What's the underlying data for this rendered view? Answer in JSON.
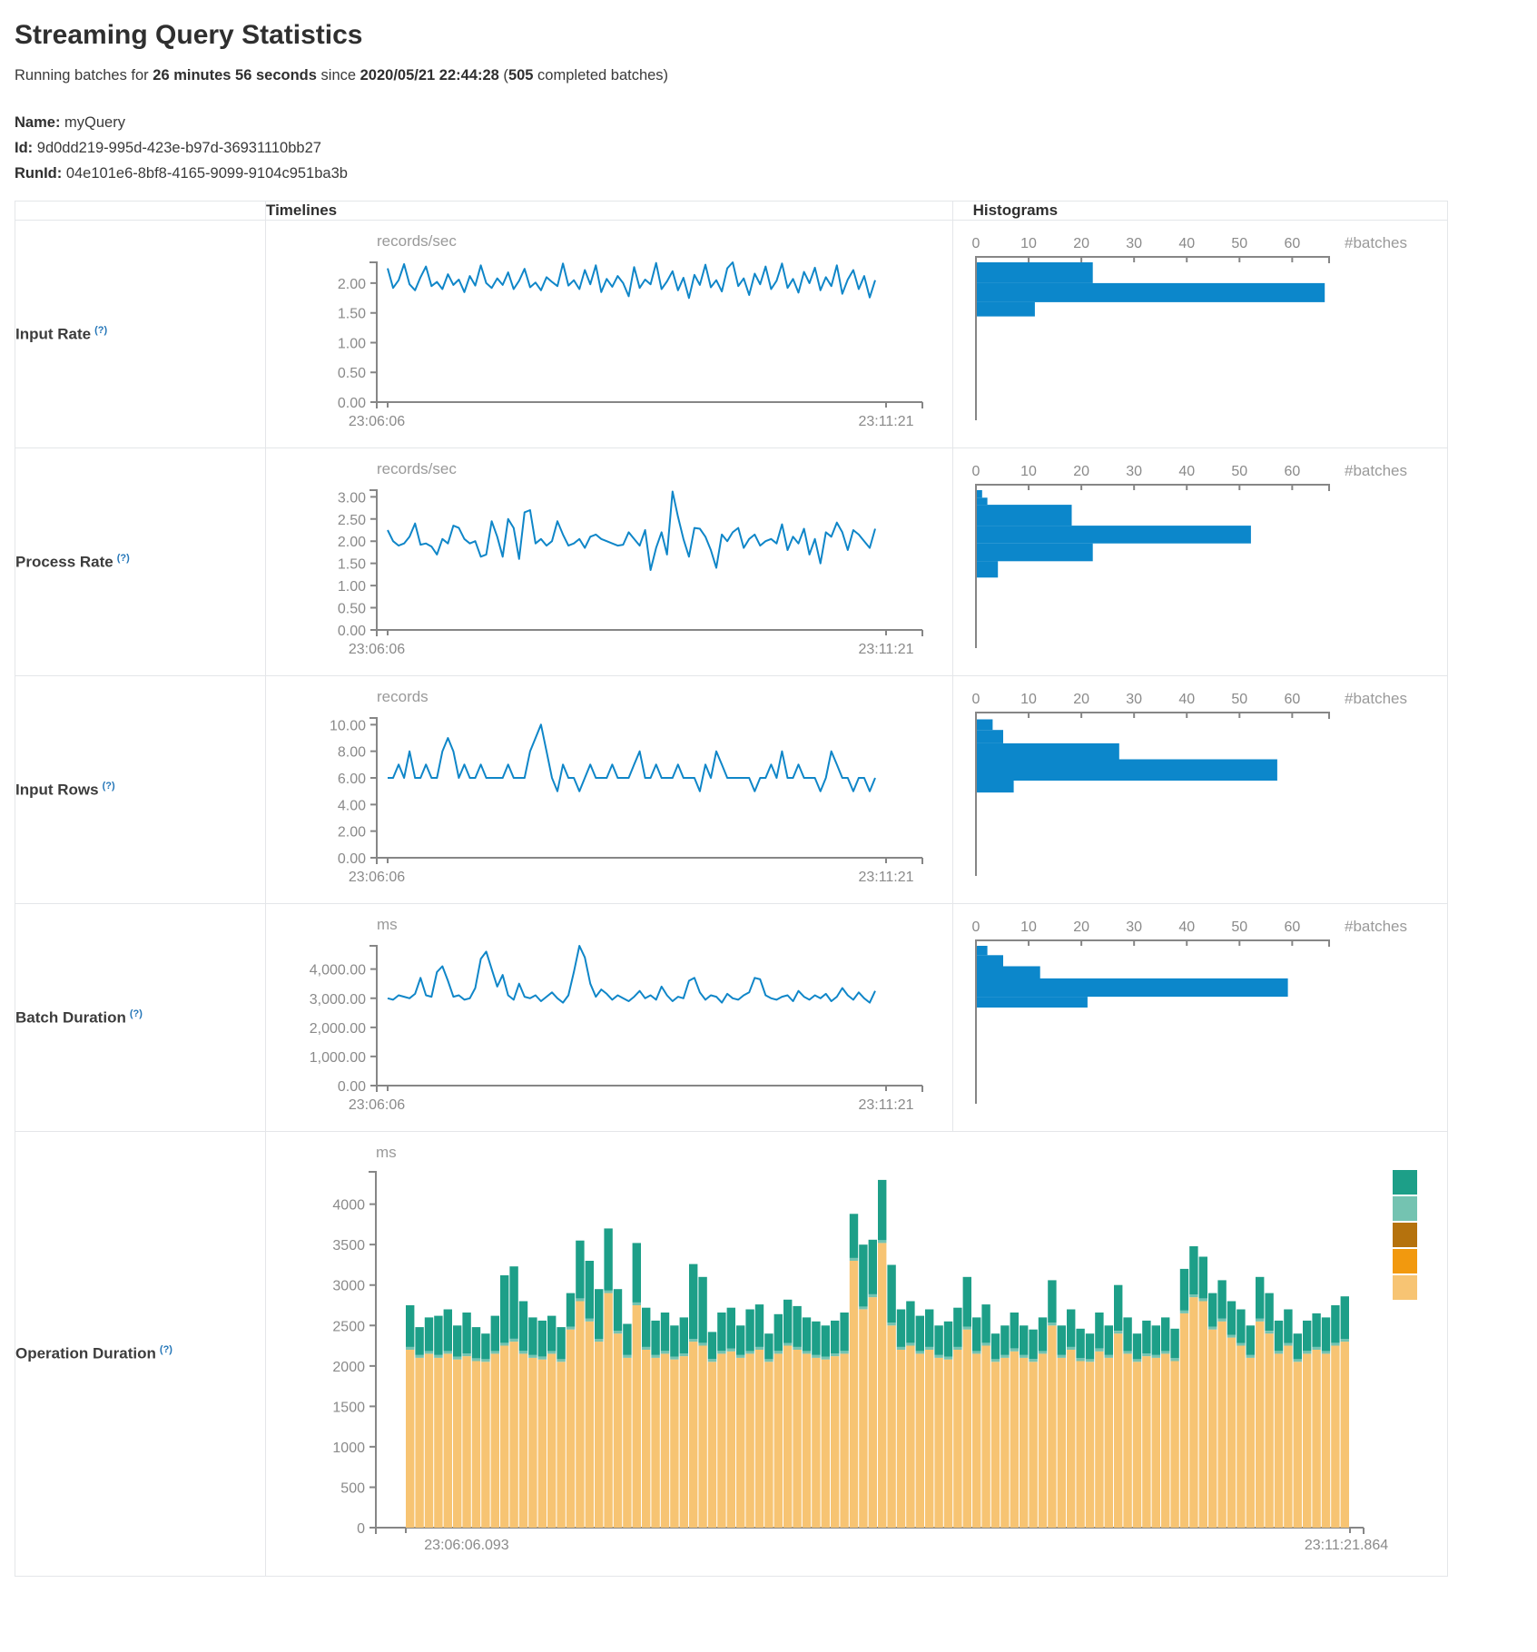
{
  "header": {
    "title": "Streaming Query Statistics",
    "running_prefix": "Running batches for ",
    "duration": "26 minutes 56 seconds",
    "since_text": " since ",
    "start_time": "2020/05/21 22:44:28",
    "paren_open": " (",
    "batches_count": "505",
    "batches_suffix": " completed batches)",
    "name_label": "Name:",
    "name_value": "myQuery",
    "id_label": "Id:",
    "id_value": "9d0dd219-995d-423e-b97d-36931110bb27",
    "runid_label": "RunId:",
    "runid_value": "04e101e6-8bf8-4165-9099-9104c951ba3b"
  },
  "table": {
    "col_timelines": "Timelines",
    "col_histograms": "Histograms",
    "rows": [
      {
        "label": "Input Rate",
        "help": "(?)"
      },
      {
        "label": "Process Rate",
        "help": "(?)"
      },
      {
        "label": "Input Rows",
        "help": "(?)"
      },
      {
        "label": "Batch Duration",
        "help": "(?)"
      },
      {
        "label": "Operation Duration",
        "help": "(?)"
      }
    ]
  },
  "chart_data": {
    "line_color": "#0f86c8",
    "bar_color": "#0c87cb",
    "input_rate": {
      "timeline": {
        "type": "line",
        "title": "records/sec",
        "x_start": "23:06:06",
        "x_end": "23:11:21",
        "ylim": [
          0,
          2.35
        ],
        "yticks": [
          {
            "v": 0,
            "label": "0.00"
          },
          {
            "v": 0.5,
            "label": "0.50"
          },
          {
            "v": 1,
            "label": "1.00"
          },
          {
            "v": 1.5,
            "label": "1.50"
          },
          {
            "v": 2,
            "label": "2.00"
          }
        ],
        "values": [
          2.25,
          1.92,
          2.05,
          2.32,
          1.98,
          1.88,
          2.1,
          2.28,
          1.95,
          2.02,
          1.9,
          2.15,
          1.97,
          2.06,
          1.85,
          2.12,
          1.96,
          2.3,
          2.0,
          1.92,
          2.08,
          1.97,
          2.18,
          1.9,
          2.04,
          2.24,
          1.93,
          2.01,
          1.88,
          2.1,
          2.02,
          1.95,
          2.33,
          1.96,
          2.05,
          1.9,
          2.22,
          1.98,
          2.3,
          1.85,
          2.07,
          1.94,
          2.12,
          2.0,
          1.78,
          2.27,
          1.92,
          2.06,
          1.98,
          2.34,
          1.9,
          2.03,
          2.2,
          1.88,
          2.09,
          1.75,
          2.14,
          1.97,
          2.31,
          1.93,
          2.05,
          1.86,
          2.25,
          2.35,
          1.95,
          2.08,
          1.8,
          2.16,
          1.98,
          2.28,
          1.9,
          2.04,
          2.33,
          1.92,
          2.07,
          1.84,
          2.19,
          2.0,
          2.26,
          1.88,
          2.1,
          1.95,
          2.3,
          1.82,
          2.06,
          2.22,
          1.9,
          2.12,
          1.76,
          2.05
        ]
      },
      "histogram": {
        "type": "bar",
        "orientation": "horizontal",
        "xlabel": "#batches",
        "xlim": [
          0,
          67
        ],
        "xticks": [
          0,
          10,
          20,
          30,
          40,
          50,
          60
        ],
        "bins": [
          {
            "lo": 2.0,
            "hi": 2.35,
            "count": 22
          },
          {
            "lo": 1.68,
            "hi": 2.0,
            "count": 66
          },
          {
            "lo": 1.44,
            "hi": 1.68,
            "count": 11
          }
        ]
      }
    },
    "process_rate": {
      "timeline": {
        "type": "line",
        "title": "records/sec",
        "x_start": "23:06:06",
        "x_end": "23:11:21",
        "ylim": [
          0,
          3.15
        ],
        "yticks": [
          {
            "v": 0,
            "label": "0.00"
          },
          {
            "v": 0.5,
            "label": "0.50"
          },
          {
            "v": 1,
            "label": "1.00"
          },
          {
            "v": 1.5,
            "label": "1.50"
          },
          {
            "v": 2,
            "label": "2.00"
          },
          {
            "v": 2.5,
            "label": "2.50"
          },
          {
            "v": 3,
            "label": "3.00"
          }
        ],
        "values": [
          2.25,
          2.0,
          1.9,
          1.95,
          2.1,
          2.4,
          1.92,
          1.95,
          1.88,
          1.7,
          2.05,
          1.95,
          2.35,
          2.3,
          2.05,
          1.95,
          2.0,
          1.65,
          1.7,
          2.45,
          2.1,
          1.65,
          2.5,
          2.3,
          1.6,
          2.65,
          2.7,
          1.95,
          2.05,
          1.9,
          2.0,
          2.45,
          2.15,
          1.9,
          1.95,
          2.05,
          1.85,
          2.1,
          2.15,
          2.05,
          2.0,
          1.95,
          1.9,
          1.92,
          2.2,
          2.05,
          1.9,
          2.25,
          1.35,
          1.85,
          2.2,
          1.7,
          3.12,
          2.55,
          2.05,
          1.65,
          2.3,
          2.28,
          2.1,
          1.8,
          1.4,
          2.15,
          2.0,
          2.2,
          2.3,
          1.85,
          2.05,
          2.15,
          1.9,
          2.0,
          2.05,
          1.95,
          2.38,
          1.8,
          2.1,
          1.95,
          2.28,
          1.7,
          2.05,
          1.5,
          2.2,
          2.1,
          2.42,
          2.2,
          1.8,
          2.25,
          2.15,
          2.0,
          1.85,
          2.28
        ]
      },
      "histogram": {
        "type": "bar",
        "orientation": "horizontal",
        "xlabel": "#batches",
        "xlim": [
          0,
          67
        ],
        "xticks": [
          0,
          10,
          20,
          30,
          40,
          50,
          60
        ],
        "bins": [
          {
            "lo": 2.98,
            "hi": 3.15,
            "count": 1
          },
          {
            "lo": 2.82,
            "hi": 2.98,
            "count": 2
          },
          {
            "lo": 2.35,
            "hi": 2.82,
            "count": 18
          },
          {
            "lo": 1.95,
            "hi": 2.35,
            "count": 52
          },
          {
            "lo": 1.55,
            "hi": 1.95,
            "count": 22
          },
          {
            "lo": 1.18,
            "hi": 1.55,
            "count": 4
          }
        ]
      }
    },
    "input_rows": {
      "timeline": {
        "type": "line",
        "title": "records",
        "x_start": "23:06:06",
        "x_end": "23:11:21",
        "ylim": [
          0,
          10.5
        ],
        "yticks": [
          {
            "v": 0,
            "label": "0.00"
          },
          {
            "v": 2,
            "label": "2.00"
          },
          {
            "v": 4,
            "label": "4.00"
          },
          {
            "v": 6,
            "label": "6.00"
          },
          {
            "v": 8,
            "label": "8.00"
          },
          {
            "v": 10,
            "label": "10.00"
          }
        ],
        "values": [
          6,
          6,
          7,
          6,
          8,
          6,
          6,
          7,
          6,
          6,
          8,
          9,
          8,
          6,
          7,
          6,
          6,
          7,
          6,
          6,
          6,
          6,
          7,
          6,
          6,
          6,
          8,
          9,
          10,
          8,
          6,
          5,
          7,
          6,
          6,
          5,
          6,
          7,
          6,
          6,
          6,
          7,
          6,
          6,
          6,
          7,
          8,
          6,
          6,
          7,
          6,
          6,
          6,
          7,
          6,
          6,
          6,
          5,
          7,
          6,
          8,
          7,
          6,
          6,
          6,
          6,
          6,
          5,
          6,
          6,
          7,
          6,
          8,
          6,
          6,
          7,
          6,
          6,
          6,
          5,
          6,
          8,
          7,
          6,
          6,
          5,
          6,
          6,
          5,
          6
        ]
      },
      "histogram": {
        "type": "bar",
        "orientation": "horizontal",
        "xlabel": "#batches",
        "xlim": [
          0,
          67
        ],
        "xticks": [
          0,
          10,
          20,
          30,
          40,
          50,
          60
        ],
        "bins": [
          {
            "lo": 9.6,
            "hi": 10.4,
            "count": 3
          },
          {
            "lo": 8.6,
            "hi": 9.6,
            "count": 5
          },
          {
            "lo": 7.4,
            "hi": 8.6,
            "count": 27
          },
          {
            "lo": 5.8,
            "hi": 7.4,
            "count": 57
          },
          {
            "lo": 4.9,
            "hi": 5.8,
            "count": 7
          }
        ]
      }
    },
    "batch_duration": {
      "timeline": {
        "type": "line",
        "title": "ms",
        "x_start": "23:06:06",
        "x_end": "23:11:21",
        "ylim": [
          0,
          4800
        ],
        "yticks": [
          {
            "v": 0,
            "label": "0.00"
          },
          {
            "v": 1000,
            "label": "1,000.00"
          },
          {
            "v": 2000,
            "label": "2,000.00"
          },
          {
            "v": 3000,
            "label": "3,000.00"
          },
          {
            "v": 4000,
            "label": "4,000.00"
          }
        ],
        "values": [
          3000,
          2950,
          3100,
          3050,
          3000,
          3150,
          3700,
          3100,
          3050,
          3900,
          4100,
          3600,
          3050,
          3100,
          2950,
          3000,
          3350,
          4350,
          4600,
          4000,
          3400,
          3800,
          3100,
          2950,
          3500,
          3050,
          3000,
          3100,
          2900,
          3050,
          3200,
          3000,
          2850,
          3100,
          3900,
          4800,
          4400,
          3500,
          3050,
          3300,
          3150,
          2950,
          3100,
          3000,
          2900,
          3050,
          3250,
          3000,
          3100,
          2950,
          3400,
          3100,
          2900,
          3050,
          3000,
          3600,
          3700,
          3200,
          2950,
          3100,
          3050,
          2850,
          3150,
          3000,
          2950,
          3100,
          3200,
          3700,
          3650,
          3100,
          3000,
          2950,
          3050,
          3100,
          2900,
          3250,
          3050,
          2950,
          3100,
          3000,
          3150,
          2900,
          3050,
          3350,
          3100,
          2950,
          3200,
          3000,
          2850,
          3250
        ]
      },
      "histogram": {
        "type": "bar",
        "orientation": "horizontal",
        "xlabel": "#batches",
        "xlim": [
          0,
          67
        ],
        "xticks": [
          0,
          10,
          20,
          30,
          40,
          50,
          60
        ],
        "bins": [
          {
            "lo": 4480,
            "hi": 4800,
            "count": 2
          },
          {
            "lo": 4100,
            "hi": 4480,
            "count": 5
          },
          {
            "lo": 3680,
            "hi": 4100,
            "count": 12
          },
          {
            "lo": 3050,
            "hi": 3680,
            "count": 59
          },
          {
            "lo": 2680,
            "hi": 3050,
            "count": 21
          }
        ]
      }
    },
    "operation_duration": {
      "type": "stacked-bar",
      "title": "ms",
      "x_start": "23:06:06.093",
      "x_end": "23:11:21.864",
      "ylim": [
        0,
        4400
      ],
      "yticks": [
        {
          "v": 0,
          "label": "0"
        },
        {
          "v": 500,
          "label": "500"
        },
        {
          "v": 1000,
          "label": "1000"
        },
        {
          "v": 1500,
          "label": "1500"
        },
        {
          "v": 2000,
          "label": "2000"
        },
        {
          "v": 2500,
          "label": "2500"
        },
        {
          "v": 3000,
          "label": "3000"
        },
        {
          "v": 3500,
          "label": "3500"
        },
        {
          "v": 4000,
          "label": "4000"
        }
      ],
      "colors": {
        "bottom": "#f7c473",
        "mid": "#74c3b1",
        "top": "#1d9f88"
      },
      "legend_colors": [
        "#1d9f88",
        "#74c3b1",
        "#b5720d",
        "#f2990e",
        "#f7c473"
      ],
      "mid_value": 35,
      "bottom": [
        2200,
        2100,
        2150,
        2100,
        2150,
        2080,
        2120,
        2060,
        2050,
        2150,
        2250,
        2300,
        2150,
        2100,
        2080,
        2150,
        2050,
        2450,
        2800,
        2550,
        2300,
        2900,
        2400,
        2100,
        2750,
        2200,
        2100,
        2150,
        2080,
        2120,
        2300,
        2250,
        2050,
        2150,
        2180,
        2100,
        2150,
        2200,
        2050,
        2150,
        2250,
        2200,
        2150,
        2100,
        2080,
        2120,
        2150,
        3300,
        2700,
        2850,
        3520,
        2500,
        2200,
        2250,
        2150,
        2200,
        2100,
        2080,
        2200,
        2450,
        2150,
        2250,
        2050,
        2100,
        2180,
        2100,
        2050,
        2150,
        2500,
        2100,
        2200,
        2060,
        2050,
        2180,
        2100,
        2400,
        2150,
        2050,
        2120,
        2100,
        2150,
        2060,
        2650,
        2850,
        2800,
        2450,
        2550,
        2350,
        2250,
        2100,
        2550,
        2400,
        2150,
        2250,
        2050,
        2150,
        2200,
        2150,
        2250,
        2300
      ],
      "total": [
        2750,
        2480,
        2600,
        2620,
        2700,
        2500,
        2660,
        2480,
        2400,
        2620,
        3120,
        3230,
        2800,
        2600,
        2560,
        2620,
        2480,
        2900,
        3550,
        3300,
        2950,
        3700,
        2950,
        2520,
        3520,
        2720,
        2560,
        2660,
        2500,
        2600,
        3260,
        3100,
        2420,
        2660,
        2720,
        2500,
        2700,
        2760,
        2400,
        2640,
        2820,
        2740,
        2600,
        2550,
        2500,
        2560,
        2660,
        3880,
        3500,
        3560,
        4300,
        3250,
        2700,
        2800,
        2620,
        2700,
        2500,
        2550,
        2720,
        3100,
        2600,
        2760,
        2400,
        2500,
        2660,
        2500,
        2450,
        2600,
        3060,
        2500,
        2700,
        2460,
        2400,
        2660,
        2500,
        3000,
        2600,
        2400,
        2560,
        2500,
        2600,
        2460,
        3200,
        3480,
        3350,
        2900,
        3060,
        2800,
        2700,
        2500,
        3100,
        2900,
        2560,
        2700,
        2400,
        2560,
        2650,
        2600,
        2750,
        2860
      ]
    }
  }
}
